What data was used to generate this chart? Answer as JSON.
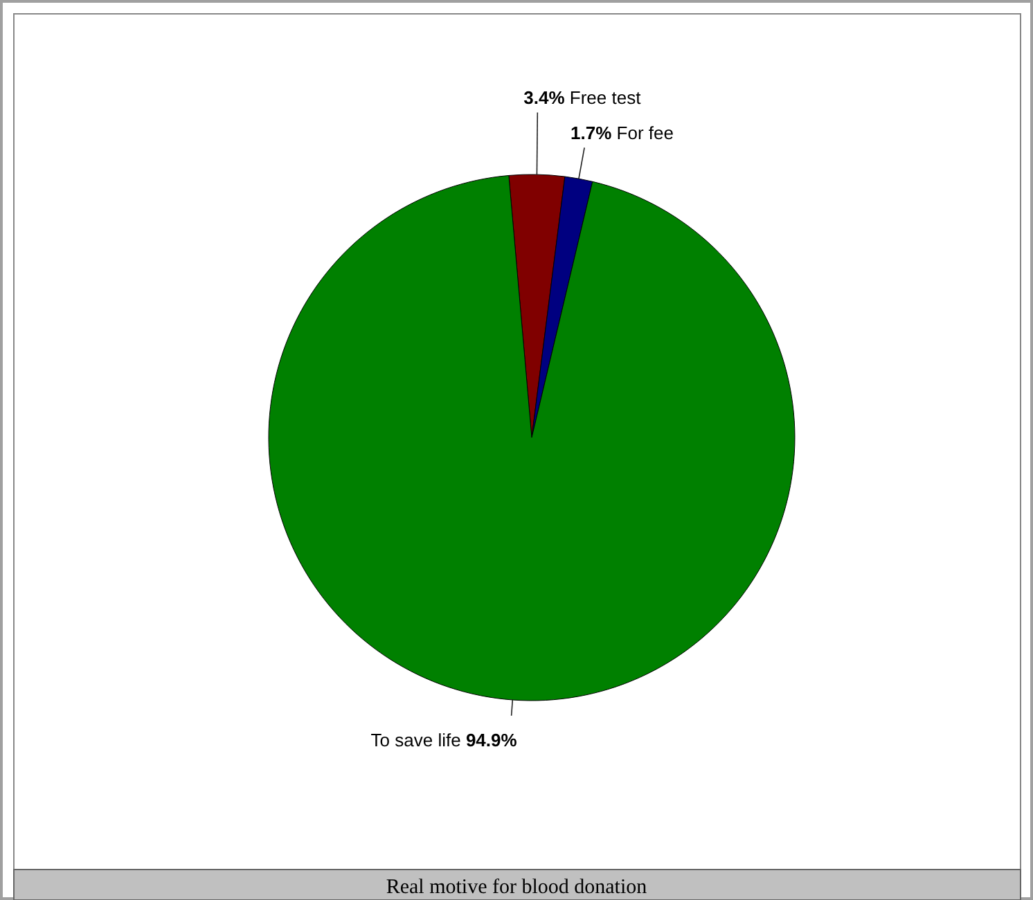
{
  "chart_data": {
    "type": "pie",
    "title": "Real motive for blood donation",
    "categories": [
      "Free test",
      "For fee",
      "To save life"
    ],
    "values": [
      3.4,
      1.7,
      94.9
    ],
    "colors": [
      "#800000",
      "#000080",
      "#008000"
    ],
    "value_labels": [
      "3.4%",
      "1.7%",
      "94.9%"
    ]
  }
}
